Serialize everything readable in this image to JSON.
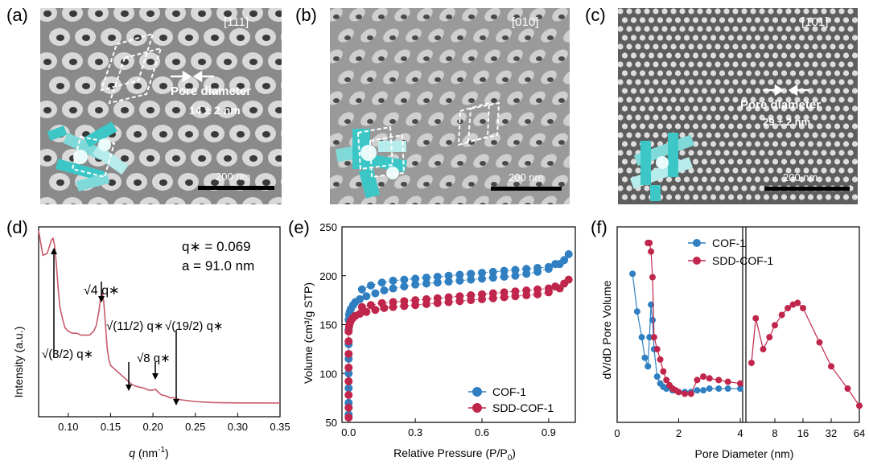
{
  "panels": {
    "a": {
      "letter": "(a)",
      "zone": "[111]",
      "pore_label": "Pore diameter",
      "pore_value": "14 ± 2 nm",
      "scale": "200 nm"
    },
    "b": {
      "letter": "(b)",
      "zone": "[010]",
      "scale": "200 nm"
    },
    "c": {
      "letter": "(c)",
      "zone": "[101]",
      "pore_label": "Pore diameter",
      "pore_value": "29 ± 2 nm",
      "scale": "200 nm"
    },
    "d": {
      "letter": "(d)"
    },
    "e": {
      "letter": "(e)"
    },
    "f": {
      "letter": "(f)"
    }
  },
  "colors": {
    "cof1": "#2f7fc1",
    "sdd": "#c0264b",
    "saxs": "#c85a6a",
    "micro_bg": "#8c8c8c",
    "tem_bg": "#5a5a5a",
    "cyan": "#3cc6c6"
  },
  "chart_data": [
    {
      "type": "line",
      "panel": "d",
      "xlabel_sym": "q",
      "xlabel_unit": "(nm",
      "xlabel_exp": "-1",
      "xlabel_close": ")",
      "ylabel": "Intensity (a.u.)",
      "xlim": [
        0.065,
        0.35
      ],
      "ylim": [
        0,
        1
      ],
      "xticks": [
        0.1,
        0.15,
        0.2,
        0.25,
        0.3,
        0.35
      ],
      "xtick_labels": [
        "0.10",
        "0.15",
        "0.20",
        "0.25",
        "0.30",
        "0.35"
      ],
      "annotations": {
        "qstar": "q∗ = 0.069",
        "a": "a = 91.0 nm",
        "sqrt4": "√4 q∗",
        "sqrt32": "√(3/2) q∗",
        "sqrt112": "√(11/2) q∗",
        "sqrt8": "√8 q∗",
        "sqrt192": "√(19/2) q∗"
      },
      "x": [
        0.065,
        0.07,
        0.075,
        0.078,
        0.08,
        0.082,
        0.084,
        0.086,
        0.088,
        0.09,
        0.093,
        0.096,
        0.1,
        0.105,
        0.11,
        0.115,
        0.12,
        0.125,
        0.13,
        0.133,
        0.136,
        0.138,
        0.14,
        0.142,
        0.144,
        0.146,
        0.148,
        0.15,
        0.155,
        0.16,
        0.165,
        0.17,
        0.175,
        0.18,
        0.185,
        0.19,
        0.195,
        0.2,
        0.203,
        0.206,
        0.21,
        0.215,
        0.22,
        0.225,
        0.228,
        0.232,
        0.24,
        0.25,
        0.26,
        0.27,
        0.28,
        0.3,
        0.32,
        0.35
      ],
      "y": [
        0.98,
        0.85,
        0.86,
        0.9,
        0.93,
        0.94,
        0.9,
        0.8,
        0.68,
        0.58,
        0.52,
        0.47,
        0.45,
        0.44,
        0.44,
        0.43,
        0.43,
        0.43,
        0.45,
        0.48,
        0.55,
        0.62,
        0.66,
        0.6,
        0.48,
        0.36,
        0.3,
        0.27,
        0.25,
        0.23,
        0.21,
        0.19,
        0.17,
        0.16,
        0.155,
        0.15,
        0.14,
        0.14,
        0.145,
        0.13,
        0.115,
        0.11,
        0.1,
        0.1,
        0.095,
        0.09,
        0.085,
        0.08,
        0.077,
        0.075,
        0.074,
        0.073,
        0.073,
        0.072
      ]
    },
    {
      "type": "scatter",
      "panel": "e",
      "xlabel_main": "Relative Pressure (P/P",
      "xlabel_sub": "0",
      "xlabel_close": ")",
      "ylabel": "Volume (cm³/g STP)",
      "xlim": [
        -0.03,
        1.02
      ],
      "ylim": [
        50,
        250
      ],
      "xticks": [
        0.0,
        0.3,
        0.6,
        0.9
      ],
      "xtick_labels": [
        "0.0",
        "0.3",
        "0.6",
        "0.9"
      ],
      "yticks": [
        50,
        100,
        150,
        200,
        250
      ],
      "ytick_labels": [
        "50",
        "100",
        "150",
        "200",
        "250"
      ],
      "legend": [
        "COF-1",
        "SDD-COF-1"
      ],
      "series": [
        {
          "name": "COF-1",
          "x": [
            0.0,
            0.0,
            0.0,
            0.0,
            0.0,
            0.0,
            0.0,
            0.0,
            0.002,
            0.005,
            0.01,
            0.02,
            0.03,
            0.05,
            0.08,
            0.12,
            0.16,
            0.2,
            0.25,
            0.3,
            0.35,
            0.4,
            0.45,
            0.5,
            0.55,
            0.6,
            0.65,
            0.7,
            0.75,
            0.8,
            0.85,
            0.9,
            0.95,
            0.99,
            0.97,
            0.93,
            0.9,
            0.85,
            0.8,
            0.75,
            0.7,
            0.65,
            0.6,
            0.55,
            0.5,
            0.45,
            0.4,
            0.35,
            0.3,
            0.25,
            0.2,
            0.15,
            0.1,
            0.06
          ],
          "y": [
            58,
            70,
            85,
            100,
            115,
            130,
            145,
            155,
            160,
            163,
            166,
            170,
            173,
            176,
            179,
            182,
            185,
            187,
            189,
            191,
            192,
            193,
            194,
            195,
            196,
            197,
            198,
            199,
            200,
            202,
            204,
            207,
            212,
            222,
            216,
            212,
            209,
            208,
            207,
            206,
            205,
            204,
            203,
            202,
            201,
            200,
            199,
            198,
            197,
            196,
            195,
            193,
            190,
            186
          ]
        },
        {
          "name": "SDD-COF-1",
          "x": [
            0.0,
            0.0,
            0.0,
            0.0,
            0.0,
            0.0,
            0.0,
            0.0,
            0.002,
            0.005,
            0.01,
            0.02,
            0.03,
            0.05,
            0.08,
            0.12,
            0.16,
            0.2,
            0.25,
            0.3,
            0.35,
            0.4,
            0.45,
            0.5,
            0.55,
            0.6,
            0.65,
            0.7,
            0.75,
            0.8,
            0.85,
            0.9,
            0.95,
            0.99,
            0.97,
            0.93,
            0.9,
            0.85,
            0.8,
            0.75,
            0.7,
            0.65,
            0.6,
            0.55,
            0.5,
            0.45,
            0.4,
            0.35,
            0.3,
            0.25,
            0.2,
            0.15,
            0.1,
            0.06
          ],
          "y": [
            55,
            65,
            78,
            92,
            106,
            120,
            133,
            143,
            148,
            151,
            154,
            157,
            159,
            161,
            163,
            165,
            167,
            168,
            169,
            170,
            171,
            172,
            173,
            174,
            175,
            176,
            177,
            178,
            179,
            180,
            181,
            183,
            187,
            196,
            192,
            189,
            187,
            186,
            185,
            184,
            183,
            182,
            181,
            180,
            179,
            178,
            177,
            176,
            175,
            174,
            173,
            172,
            170,
            168
          ]
        }
      ]
    },
    {
      "type": "line",
      "panel": "f",
      "xlabel": "Pore Diameter (nm)",
      "ylabel": "dV/dD Pore Volume",
      "xticks_left": [
        0,
        2,
        4
      ],
      "xtick_labels_left": [
        "0",
        "2",
        "4"
      ],
      "xticks_right": [
        8,
        16,
        32,
        64
      ],
      "xtick_labels_right": [
        "8",
        "16",
        "32",
        "64"
      ],
      "legend": [
        "COF-1",
        "SDD-COF-1"
      ],
      "series": [
        {
          "name": "COF-1",
          "x": [
            0.5,
            0.65,
            0.8,
            0.9,
            1.0,
            1.05,
            1.1,
            1.15,
            1.2,
            1.3,
            1.4,
            1.5,
            1.6,
            1.8,
            2.0,
            2.2,
            2.4,
            2.6,
            2.8,
            3.0,
            3.3,
            3.6,
            4.0
          ],
          "y": [
            0.82,
            0.6,
            0.45,
            0.33,
            0.28,
            0.45,
            0.64,
            0.55,
            0.38,
            0.22,
            0.18,
            0.16,
            0.15,
            0.14,
            0.13,
            0.13,
            0.13,
            0.14,
            0.14,
            0.15,
            0.15,
            0.15,
            0.15
          ]
        },
        {
          "name": "SDD-COF-1",
          "x": [
            1.0,
            1.05,
            1.1,
            1.15,
            1.2,
            1.3,
            1.4,
            1.5,
            1.6,
            1.7,
            1.8,
            1.9,
            2.0,
            2.2,
            2.4,
            2.6,
            2.8,
            3.0,
            3.3,
            3.6,
            4.0
          ],
          "y": [
            1.0,
            1.0,
            0.95,
            0.8,
            0.45,
            0.38,
            0.32,
            0.25,
            0.2,
            0.17,
            0.15,
            0.14,
            0.13,
            0.12,
            0.12,
            0.2,
            0.22,
            0.21,
            0.2,
            0.19,
            0.18
          ],
          "x2": [
            4.5,
            5.0,
            6.0,
            7.0,
            8.0,
            9.5,
            11,
            12.5,
            14,
            16,
            24,
            32,
            48,
            64
          ],
          "y2": [
            0.3,
            0.56,
            0.38,
            0.45,
            0.52,
            0.58,
            0.62,
            0.64,
            0.65,
            0.62,
            0.42,
            0.28,
            0.15,
            0.05
          ]
        }
      ]
    }
  ]
}
